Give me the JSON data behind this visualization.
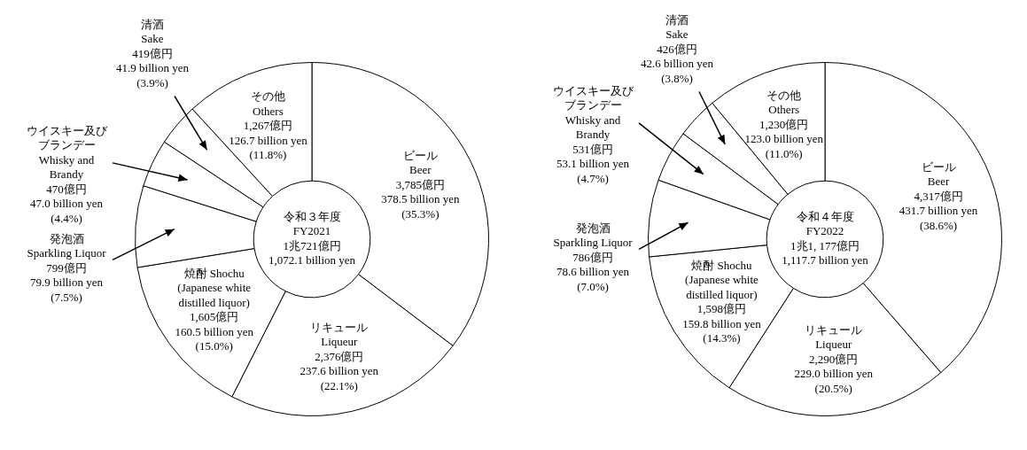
{
  "chart_data": [
    {
      "type": "donut",
      "title": "令和３年度\nFY2021\n1兆721億円\n1,072.1 billion yen",
      "categories": [
        "ビール\nBeer",
        "リキュール\nLiqueur",
        "焼酎 Shochu\n(Japanese white\ndistilled liquor)",
        "発泡酒\nSparkling Liquor",
        "ウイスキー及びブランデー\nWhisky and\nBrandy",
        "清酒\nSake",
        "その他\nOthers"
      ],
      "values": [
        3785,
        2376,
        1605,
        799,
        470,
        419,
        1267
      ],
      "value_labels": [
        "3,785億円\n378.5 billion yen\n(35.3%)",
        "2,376億円\n237.6 billion yen\n(22.1%)",
        "1,605億円\n160.5 billion yen\n(15.0%)",
        "799億円\n79.9 billion yen\n(7.5%)",
        "470億円\n47.0 billion yen\n(4.4%)",
        "419億円\n41.9 billion yen\n(3.9%)",
        "1,267億円\n126.7 billion yen\n(11.8%)"
      ],
      "colors": [
        "#ffffff",
        "#ffffff",
        "#ffffff",
        "#ffffff",
        "#ffffff",
        "#ffffff",
        "#ffffff"
      ]
    },
    {
      "type": "donut",
      "title": "令和４年度\nFY2022\n1兆1, 177億円\n1,117.7 billion yen",
      "categories": [
        "ビール\nBeer",
        "リキュール\nLiqueur",
        "焼酎 Shochu\n(Japanese white\ndistilled liquor)",
        "発泡酒\nSparkling Liquor",
        "ウイスキー及びブランデー\nWhisky and\nBrandy",
        "清酒\nSake",
        "その他\nOthers"
      ],
      "values": [
        4317,
        2290,
        1598,
        786,
        531,
        426,
        1230
      ],
      "value_labels": [
        "4,317億円\n431.7 billion yen\n(38.6%)",
        "2,290億円\n229.0 billion yen\n(20.5%)",
        "1,598億円\n159.8 billion yen\n(14.3%)",
        "786億円\n78.6 billion yen\n(7.0%)",
        "531億円\n53.1 billion yen\n(4.7%)",
        "426億円\n42.6 billion yen\n(3.8%)",
        "1,230億円\n123.0 billion yen\n(11.0%)"
      ],
      "colors": [
        "#ffffff",
        "#ffffff",
        "#ffffff",
        "#ffffff",
        "#ffffff",
        "#ffffff",
        "#ffffff"
      ]
    }
  ]
}
